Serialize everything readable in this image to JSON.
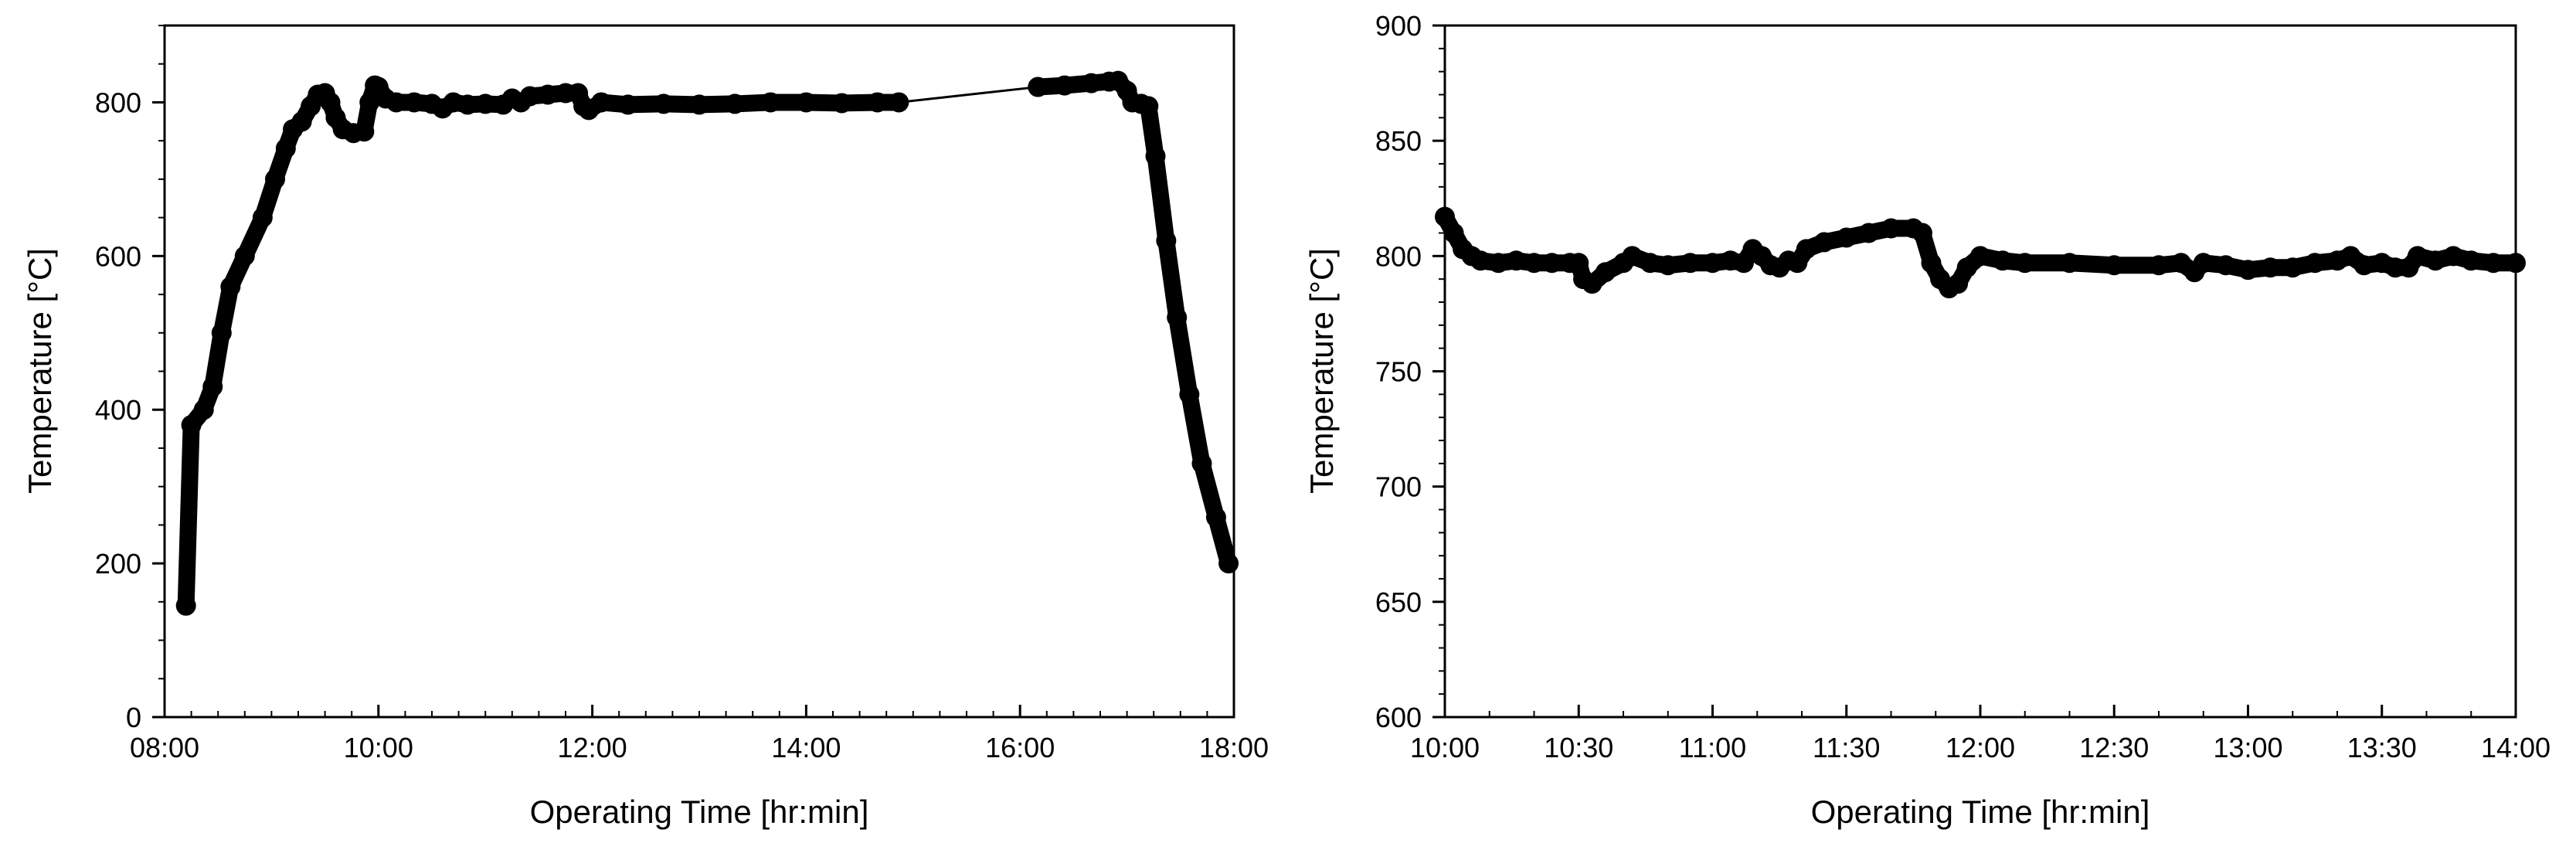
{
  "chart_data": [
    {
      "type": "line",
      "title": "",
      "xlabel": "Operating Time [hr:min]",
      "ylabel": "Temperature [°C]",
      "xlim": [
        "08:00",
        "18:00"
      ],
      "ylim": [
        0,
        900
      ],
      "x_ticks": [
        "08:00",
        "10:00",
        "12:00",
        "14:00",
        "16:00",
        "18:00"
      ],
      "y_ticks": [
        0,
        200,
        400,
        600,
        800
      ],
      "grid": false,
      "legend": "none",
      "series": [
        {
          "marker": "filled-circle",
          "color": "#000000",
          "points": [
            [
              "08:12",
              145
            ],
            [
              "08:15",
              380
            ],
            [
              "08:22",
              400
            ],
            [
              "08:27",
              430
            ],
            [
              "08:32",
              500
            ],
            [
              "08:37",
              560
            ],
            [
              "08:45",
              600
            ],
            [
              "08:55",
              650
            ],
            [
              "09:02",
              700
            ],
            [
              "09:08",
              740
            ],
            [
              "09:12",
              765
            ],
            [
              "09:17",
              775
            ],
            [
              "09:22",
              795
            ],
            [
              "09:26",
              810
            ],
            [
              "09:30",
              812
            ],
            [
              "09:33",
              800
            ],
            [
              "09:36",
              780
            ],
            [
              "09:40",
              765
            ],
            [
              "09:46",
              760
            ],
            [
              "09:52",
              762
            ],
            [
              "09:55",
              800
            ],
            [
              "09:58",
              822
            ],
            [
              "10:00",
              820
            ],
            [
              "10:04",
              805
            ],
            [
              "10:10",
              800
            ],
            [
              "10:20",
              800
            ],
            [
              "10:30",
              798
            ],
            [
              "10:36",
              792
            ],
            [
              "10:42",
              800
            ],
            [
              "10:50",
              797
            ],
            [
              "11:00",
              798
            ],
            [
              "11:10",
              797
            ],
            [
              "11:15",
              805
            ],
            [
              "11:20",
              800
            ],
            [
              "11:25",
              808
            ],
            [
              "11:35",
              810
            ],
            [
              "11:45",
              812
            ],
            [
              "11:52",
              812
            ],
            [
              "11:55",
              795
            ],
            [
              "11:58",
              790
            ],
            [
              "12:05",
              800
            ],
            [
              "12:20",
              797
            ],
            [
              "12:40",
              798
            ],
            [
              "13:00",
              797
            ],
            [
              "13:20",
              798
            ],
            [
              "13:40",
              800
            ],
            [
              "14:00",
              800
            ],
            [
              "14:20",
              799
            ],
            [
              "14:40",
              800
            ],
            [
              "14:52",
              800
            ],
            [
              "16:10",
              820
            ],
            [
              "16:25",
              822
            ],
            [
              "16:40",
              825
            ],
            [
              "16:50",
              827
            ],
            [
              "16:55",
              828
            ],
            [
              "17:00",
              815
            ],
            [
              "17:03",
              800
            ],
            [
              "17:08",
              798
            ],
            [
              "17:12",
              795
            ],
            [
              "17:16",
              730
            ],
            [
              "17:22",
              620
            ],
            [
              "17:28",
              520
            ],
            [
              "17:35",
              420
            ],
            [
              "17:42",
              330
            ],
            [
              "17:50",
              260
            ],
            [
              "17:57",
              200
            ]
          ]
        }
      ]
    },
    {
      "type": "line",
      "title": "",
      "xlabel": "Operating Time [hr:min]",
      "ylabel": "Temperature [°C]",
      "xlim": [
        "10:00",
        "14:00"
      ],
      "ylim": [
        600,
        900
      ],
      "x_ticks": [
        "10:00",
        "10:30",
        "11:00",
        "11:30",
        "12:00",
        "12:30",
        "13:00",
        "13:30",
        "14:00"
      ],
      "y_ticks": [
        600,
        650,
        700,
        750,
        800,
        850,
        900
      ],
      "grid": false,
      "legend": "none",
      "series": [
        {
          "marker": "filled-circle",
          "color": "#000000",
          "points": [
            [
              "10:00",
              817
            ],
            [
              "10:02",
              810
            ],
            [
              "10:04",
              803
            ],
            [
              "10:06",
              800
            ],
            [
              "10:08",
              798
            ],
            [
              "10:12",
              797
            ],
            [
              "10:16",
              798
            ],
            [
              "10:20",
              797
            ],
            [
              "10:24",
              797
            ],
            [
              "10:28",
              797
            ],
            [
              "10:30",
              797
            ],
            [
              "10:31",
              790
            ],
            [
              "10:33",
              788
            ],
            [
              "10:36",
              793
            ],
            [
              "10:40",
              797
            ],
            [
              "10:42",
              800
            ],
            [
              "10:46",
              797
            ],
            [
              "10:50",
              796
            ],
            [
              "10:55",
              797
            ],
            [
              "11:00",
              797
            ],
            [
              "11:04",
              798
            ],
            [
              "11:07",
              797
            ],
            [
              "11:09",
              803
            ],
            [
              "11:11",
              800
            ],
            [
              "11:13",
              796
            ],
            [
              "11:15",
              795
            ],
            [
              "11:17",
              798
            ],
            [
              "11:19",
              797
            ],
            [
              "11:21",
              803
            ],
            [
              "11:25",
              806
            ],
            [
              "11:30",
              808
            ],
            [
              "11:35",
              810
            ],
            [
              "11:40",
              812
            ],
            [
              "11:45",
              812
            ],
            [
              "11:47",
              810
            ],
            [
              "11:49",
              797
            ],
            [
              "11:51",
              790
            ],
            [
              "11:53",
              786
            ],
            [
              "11:55",
              788
            ],
            [
              "11:57",
              795
            ],
            [
              "12:00",
              800
            ],
            [
              "12:05",
              798
            ],
            [
              "12:10",
              797
            ],
            [
              "12:20",
              797
            ],
            [
              "12:30",
              796
            ],
            [
              "12:40",
              796
            ],
            [
              "12:45",
              797
            ],
            [
              "12:48",
              793
            ],
            [
              "12:50",
              797
            ],
            [
              "12:55",
              796
            ],
            [
              "13:00",
              794
            ],
            [
              "13:05",
              795
            ],
            [
              "13:10",
              795
            ],
            [
              "13:15",
              797
            ],
            [
              "13:20",
              798
            ],
            [
              "13:23",
              800
            ],
            [
              "13:26",
              796
            ],
            [
              "13:30",
              797
            ],
            [
              "13:33",
              795
            ],
            [
              "13:36",
              795
            ],
            [
              "13:38",
              800
            ],
            [
              "13:42",
              798
            ],
            [
              "13:46",
              800
            ],
            [
              "13:50",
              798
            ],
            [
              "13:55",
              797
            ],
            [
              "14:00",
              797
            ]
          ]
        }
      ]
    }
  ]
}
